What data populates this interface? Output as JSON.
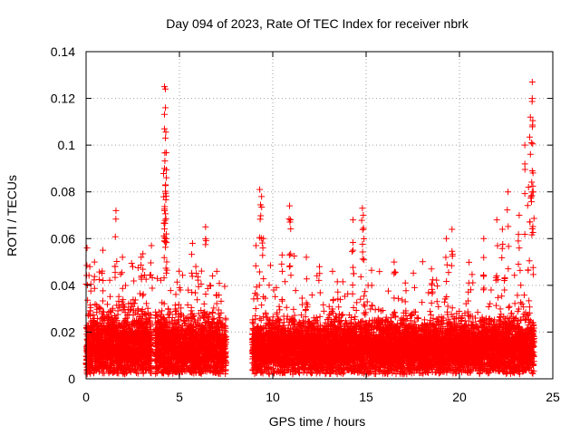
{
  "chart_data": {
    "type": "scatter",
    "title": "Day 094 of 2023, Rate Of TEC Index for receiver nbrk",
    "xlabel": "GPS time / hours",
    "ylabel": "ROTI / TECUs",
    "xlim": [
      0,
      25
    ],
    "ylim": [
      0,
      0.14
    ],
    "x_ticks": [
      0,
      5,
      10,
      15,
      20,
      25
    ],
    "x_tick_labels": [
      "0",
      "5",
      "10",
      "15",
      "20",
      "25"
    ],
    "y_ticks": [
      0,
      0.02,
      0.04,
      0.06,
      0.08,
      0.1,
      0.12,
      0.14
    ],
    "y_tick_labels": [
      "0",
      "0.02",
      "0.04",
      "0.06",
      "0.08",
      "0.1",
      "0.12",
      "0.14"
    ],
    "grid": true,
    "marker": "+",
    "series_color": "#ff0000",
    "series": [
      {
        "name": "ROTI",
        "segments": [
          {
            "t_start": 0.0,
            "t_end": 3.5,
            "step": 0.0067,
            "baseline": 0.014,
            "spread": 0.008,
            "spike_rate": 0.08,
            "spike_max": 0.04,
            "peaks": [
              [
                0.05,
                0.056
              ],
              [
                0.2,
                0.048
              ],
              [
                0.45,
                0.05
              ],
              [
                0.9,
                0.055
              ],
              [
                1.6,
                0.072
              ],
              [
                1.95,
                0.052
              ],
              [
                2.5,
                0.048
              ],
              [
                2.95,
                0.052
              ],
              [
                3.5,
                0.057
              ]
            ]
          },
          {
            "t_start": 3.7,
            "t_end": 7.5,
            "step": 0.0067,
            "baseline": 0.013,
            "spread": 0.008,
            "spike_rate": 0.09,
            "spike_max": 0.04,
            "peaks": [
              [
                4.2,
                0.125
              ],
              [
                4.25,
                0.124
              ],
              [
                4.25,
                0.116
              ],
              [
                4.2,
                0.107
              ],
              [
                4.25,
                0.103
              ],
              [
                4.2,
                0.09
              ],
              [
                4.25,
                0.083
              ],
              [
                4.2,
                0.072
              ],
              [
                4.3,
                0.062
              ],
              [
                5.7,
                0.058
              ],
              [
                6.4,
                0.065
              ],
              [
                7.0,
                0.046
              ]
            ]
          },
          {
            "t_start": 8.9,
            "t_end": 24.0,
            "step": 0.0067,
            "baseline": 0.013,
            "spread": 0.007,
            "spike_rate": 0.07,
            "spike_max": 0.036,
            "peaks": [
              [
                9.3,
                0.081
              ],
              [
                9.4,
                0.078
              ],
              [
                9.5,
                0.06
              ],
              [
                9.1,
                0.057
              ],
              [
                10.5,
                0.053
              ],
              [
                10.9,
                0.074
              ],
              [
                10.95,
                0.068
              ],
              [
                11.8,
                0.052
              ],
              [
                12.5,
                0.048
              ],
              [
                13.2,
                0.046
              ],
              [
                14.3,
                0.068
              ],
              [
                14.3,
                0.055
              ],
              [
                14.8,
                0.073
              ],
              [
                14.85,
                0.07
              ],
              [
                15.3,
                0.04
              ],
              [
                16.5,
                0.05
              ],
              [
                17.1,
                0.041
              ],
              [
                18.5,
                0.047
              ],
              [
                19.3,
                0.06
              ],
              [
                19.6,
                0.064
              ],
              [
                20.5,
                0.041
              ],
              [
                21.3,
                0.06
              ],
              [
                22.0,
                0.068
              ],
              [
                22.3,
                0.064
              ],
              [
                22.6,
                0.08
              ],
              [
                23.2,
                0.07
              ],
              [
                23.5,
                0.1
              ],
              [
                23.7,
                0.082
              ],
              [
                23.8,
                0.112
              ],
              [
                23.9,
                0.127
              ],
              [
                23.9,
                0.12
              ],
              [
                23.85,
                0.101
              ],
              [
                23.9,
                0.089
              ],
              [
                23.95,
                0.08
              ]
            ]
          }
        ]
      }
    ]
  }
}
